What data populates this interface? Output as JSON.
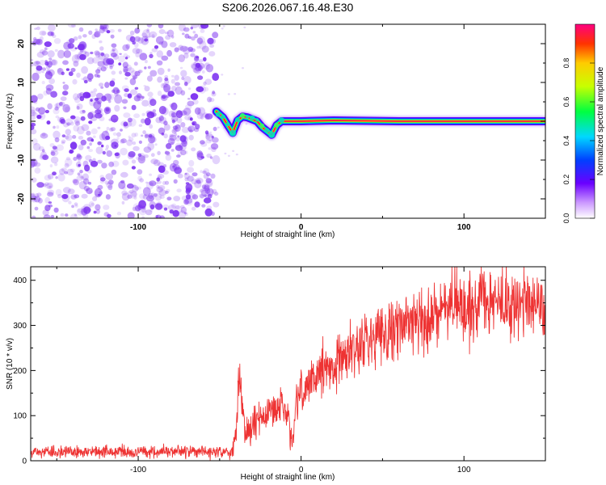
{
  "title": "S206.2026.067.16.48.E30",
  "colors": {
    "spectro": "#7b2ff0",
    "snr": "#ee3333"
  },
  "chart_data": [
    {
      "type": "heatmap",
      "name": "spectrogram",
      "xlabel": "Height of straight line (km)",
      "ylabel": "Frequency (Hz)",
      "xlim": [
        -166,
        150
      ],
      "ylim": [
        -25,
        25
      ],
      "xticks": [
        -100,
        0,
        100
      ],
      "xtick_labels": [
        "-100",
        "0",
        "100"
      ],
      "yticks": [
        -20,
        -10,
        0,
        10,
        20
      ],
      "ytick_labels": [
        "-20",
        "-10",
        "0",
        "10",
        "20"
      ],
      "noise_region_x": [
        -166,
        -52
      ],
      "signal_trace": {
        "x": [
          -52,
          -48,
          -45,
          -42,
          -39,
          -36,
          -33,
          -30,
          -27,
          -24,
          -21,
          -18,
          -15,
          -12,
          -10,
          0,
          20,
          60,
          100,
          150
        ],
        "y": [
          2.5,
          1.0,
          -1.0,
          -3.0,
          0.2,
          1.2,
          1.0,
          0.5,
          0.0,
          -1.5,
          -2.5,
          -3.5,
          -1.0,
          0.0,
          0.0,
          0.0,
          0.2,
          0.0,
          0.0,
          0.0
        ]
      },
      "colorbar": {
        "label": "Normalized spectral amplitude",
        "range": [
          0,
          1
        ],
        "ticks": [
          0.0,
          0.2,
          0.4,
          0.6,
          0.8
        ],
        "tick_labels": [
          "0.0",
          "0.2",
          "0.4",
          "0.6",
          "0.8"
        ]
      }
    },
    {
      "type": "line",
      "name": "snr",
      "xlabel": "Height of straight line (km)",
      "ylabel": "SNR (10 * v/v)",
      "xlim": [
        -166,
        150
      ],
      "ylim": [
        0,
        430
      ],
      "xticks": [
        -100,
        0,
        100
      ],
      "xtick_labels": [
        "-100",
        "0",
        "100"
      ],
      "yticks": [
        0,
        100,
        200,
        300,
        400
      ],
      "ytick_labels": [
        "0",
        "100",
        "200",
        "300",
        "400"
      ],
      "x": [
        -166,
        -140,
        -110,
        -80,
        -52,
        -42,
        -40,
        -38,
        -36,
        -34,
        -30,
        -26,
        -22,
        -18,
        -15,
        -12,
        -8,
        -5,
        -3,
        0,
        10,
        20,
        30,
        40,
        50,
        60,
        70,
        80,
        90,
        95,
        100,
        110,
        120,
        130,
        140,
        150
      ],
      "values": [
        20,
        20,
        20,
        20,
        20,
        20,
        60,
        210,
        120,
        60,
        70,
        100,
        90,
        120,
        110,
        130,
        90,
        40,
        120,
        150,
        190,
        220,
        240,
        270,
        285,
        300,
        315,
        320,
        335,
        360,
        330,
        350,
        350,
        345,
        350,
        345
      ]
    }
  ]
}
